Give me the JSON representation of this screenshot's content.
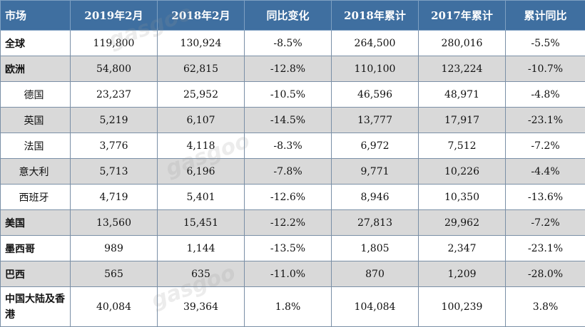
{
  "header": [
    "市场",
    "2019年2月",
    "2018年2月",
    "同比变化",
    "2018年累计",
    "2017年累计",
    "累计同比"
  ],
  "rows": [
    {
      "market": "全球",
      "sub": false,
      "shade": false,
      "values": [
        "119,800",
        "130,924",
        "-8.5%",
        "264,500",
        "280,016",
        "-5.5%"
      ]
    },
    {
      "market": "欧洲",
      "sub": false,
      "shade": true,
      "values": [
        "54,800",
        "62,815",
        "-12.8%",
        "110,100",
        "123,224",
        "-10.7%"
      ]
    },
    {
      "market": "德国",
      "sub": true,
      "shade": false,
      "values": [
        "23,237",
        "25,952",
        "-10.5%",
        "46,596",
        "48,971",
        "-4.8%"
      ]
    },
    {
      "market": "英国",
      "sub": true,
      "shade": true,
      "values": [
        "5,219",
        "6,107",
        "-14.5%",
        "13,777",
        "17,917",
        "-23.1%"
      ]
    },
    {
      "market": "法国",
      "sub": true,
      "shade": false,
      "values": [
        "3,776",
        "4,118",
        "-8.3%",
        "6,972",
        "7,512",
        "-7.2%"
      ]
    },
    {
      "market": "意大利",
      "sub": true,
      "shade": true,
      "values": [
        "5,713",
        "6,196",
        "-7.8%",
        "9,771",
        "10,226",
        "-4.4%"
      ]
    },
    {
      "market": "西班牙",
      "sub": true,
      "shade": false,
      "values": [
        "4,719",
        "5,401",
        "-12.6%",
        "8,946",
        "10,350",
        "-13.6%"
      ]
    },
    {
      "market": "美国",
      "sub": false,
      "shade": true,
      "values": [
        "13,560",
        "15,451",
        "-12.2%",
        "27,813",
        "29,962",
        "-7.2%"
      ]
    },
    {
      "market": "墨西哥",
      "sub": false,
      "shade": false,
      "values": [
        "989",
        "1,144",
        "-13.5%",
        "1,805",
        "2,347",
        "-23.1%"
      ]
    },
    {
      "market": "巴西",
      "sub": false,
      "shade": true,
      "values": [
        "565",
        "635",
        "-11.0%",
        "870",
        "1,209",
        "-28.0%"
      ]
    },
    {
      "market": "中国大陆及香港",
      "sub": false,
      "shade": false,
      "values": [
        "40,084",
        "39,364",
        "1.8%",
        "104,084",
        "100,239",
        "3.8%"
      ]
    }
  ],
  "watermark": "gasgoo"
}
